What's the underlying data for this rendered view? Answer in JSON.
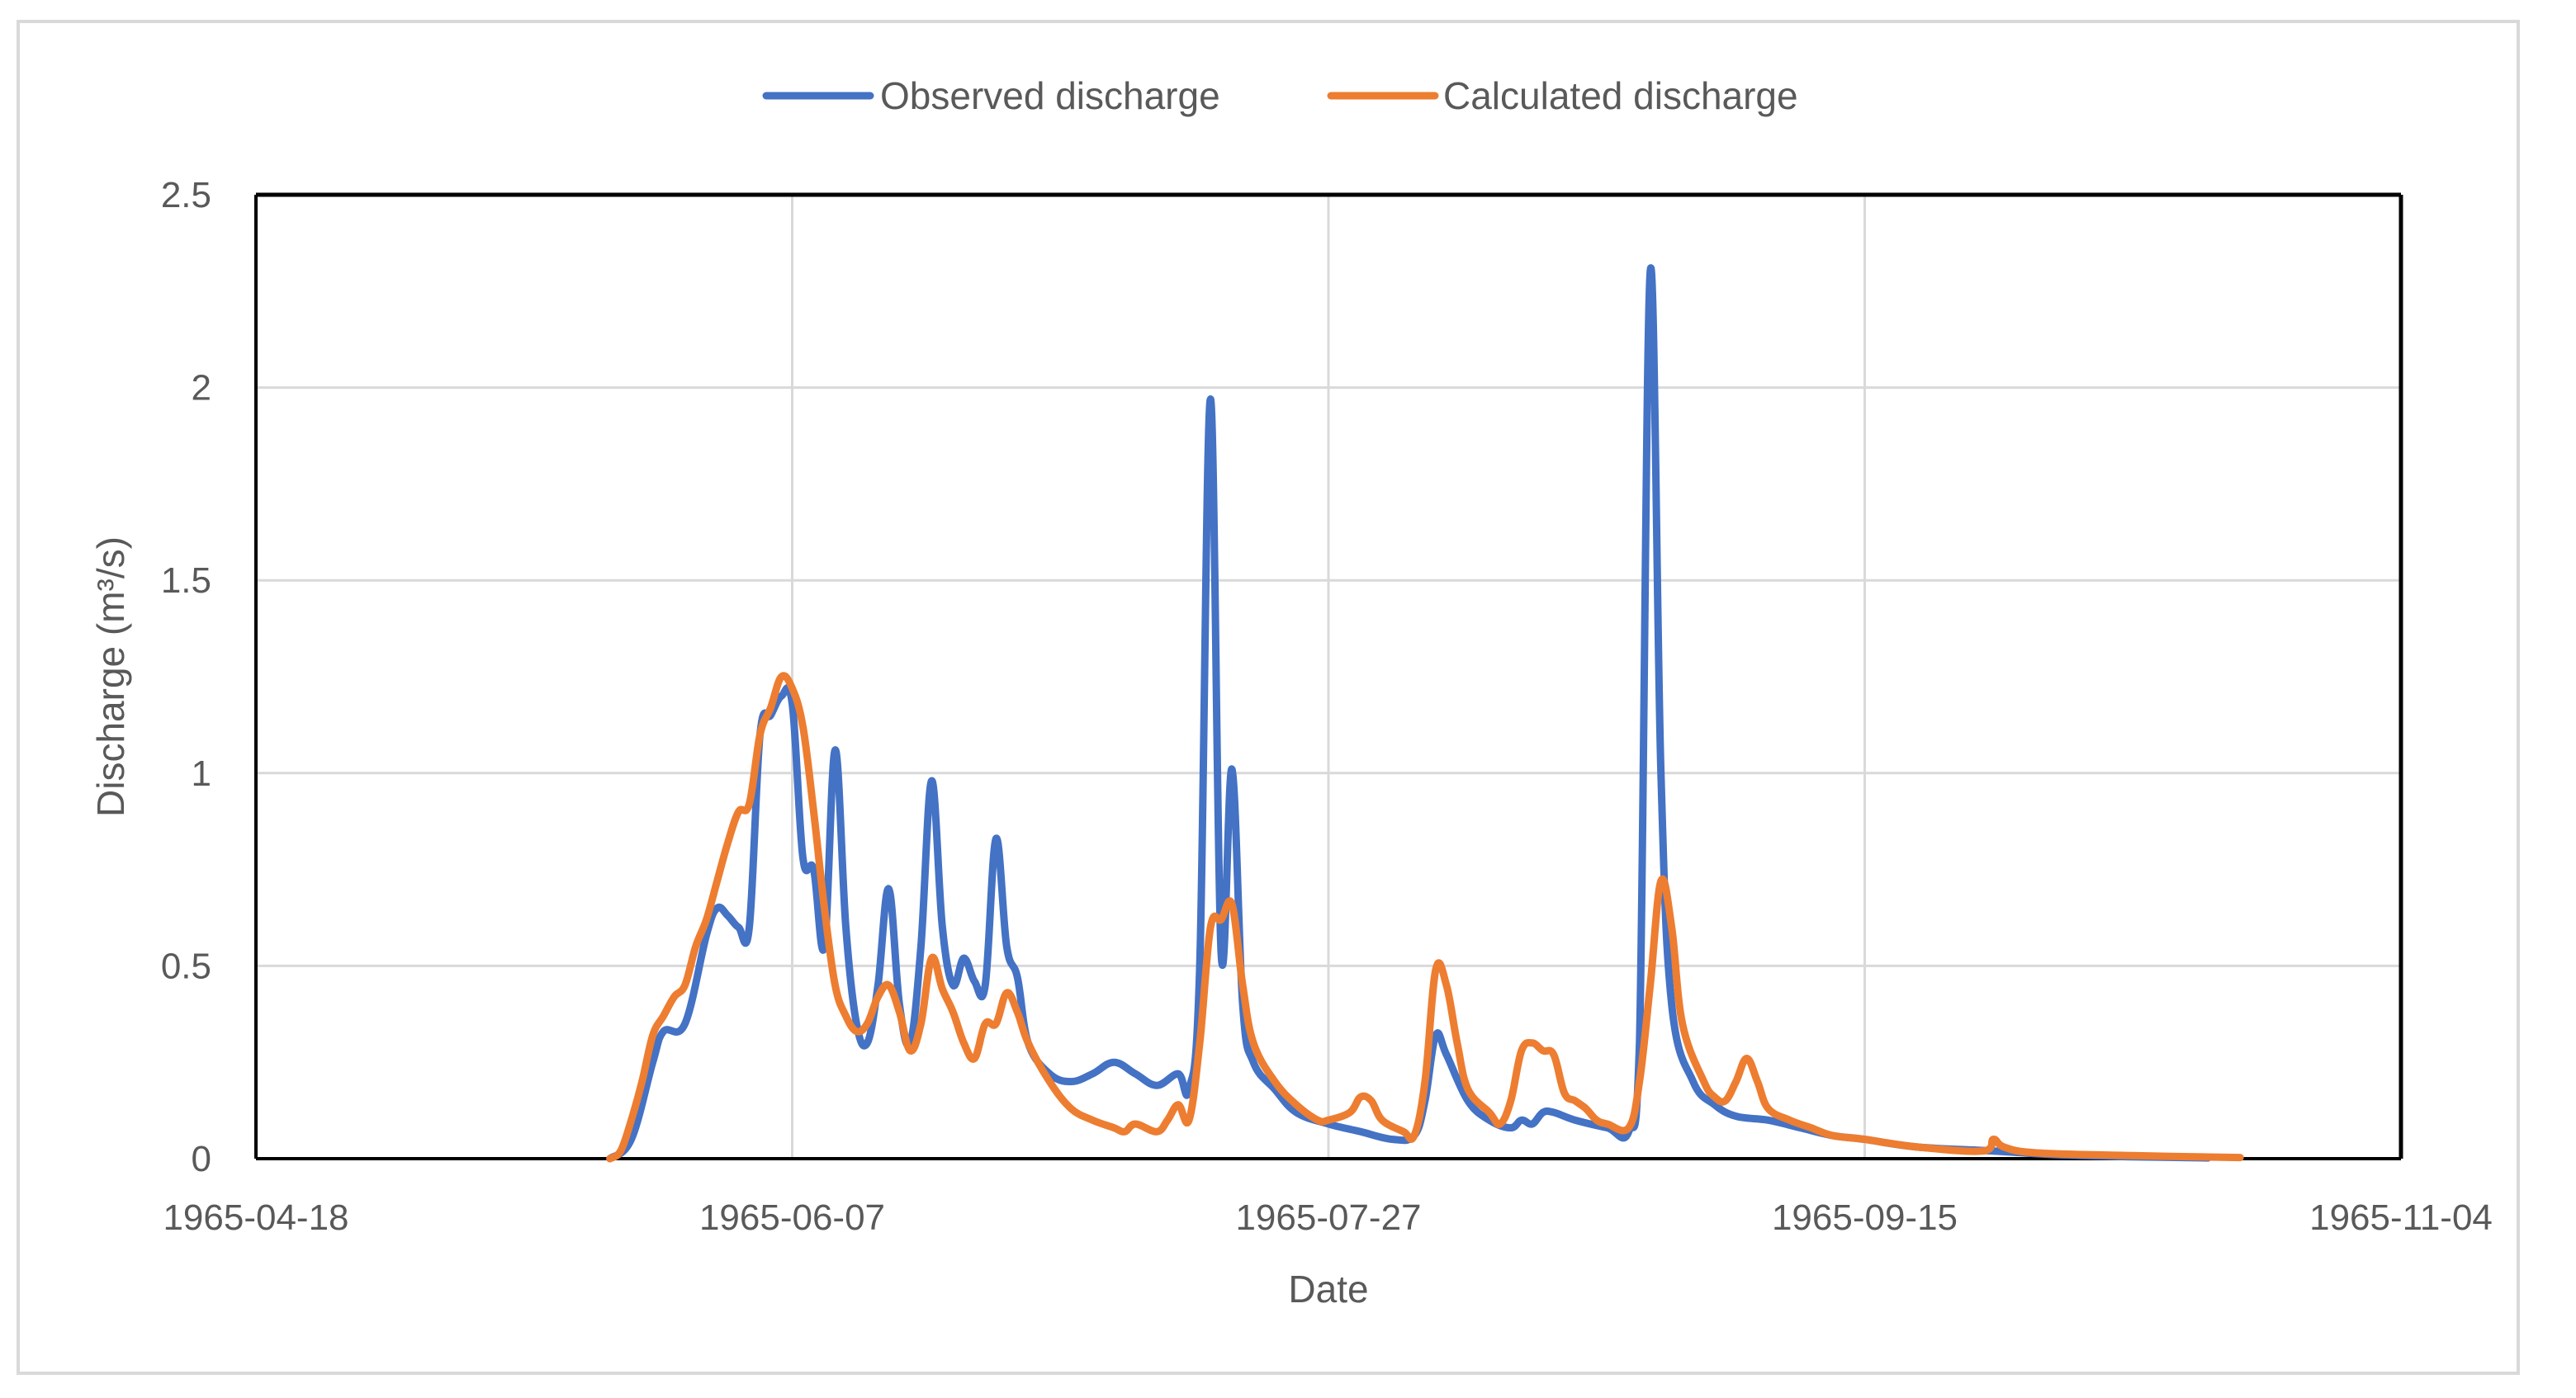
{
  "chart_data": {
    "type": "line",
    "title": "",
    "xlabel": "Date",
    "ylabel": "Discharge (m³/s)",
    "x_axis": {
      "type": "date",
      "min": "1965-04-18",
      "max": "1965-11-04",
      "ticks": [
        "1965-04-18",
        "1965-06-07",
        "1965-07-27",
        "1965-09-15",
        "1965-11-04"
      ]
    },
    "y_axis": {
      "min": 0,
      "max": 2.5,
      "ticks": [
        "0",
        "0.5",
        "1",
        "1.5",
        "2",
        "2.5"
      ]
    },
    "grid": true,
    "legend": {
      "position": "top"
    },
    "series": [
      {
        "name": "Observed discharge",
        "color": "#4472C4",
        "points": [
          [
            "1965-05-21",
            0
          ],
          [
            "1965-05-23",
            0.05
          ],
          [
            "1965-05-25",
            0.25
          ],
          [
            "1965-05-26",
            0.33
          ],
          [
            "1965-05-28",
            0.35
          ],
          [
            "1965-05-30",
            0.58
          ],
          [
            "1965-05-31",
            0.65
          ],
          [
            "1965-06-01",
            0.63
          ],
          [
            "1965-06-02",
            0.6
          ],
          [
            "1965-06-03",
            0.6
          ],
          [
            "1965-06-04",
            1.1
          ],
          [
            "1965-06-05",
            1.15
          ],
          [
            "1965-06-06",
            1.2
          ],
          [
            "1965-06-07",
            1.18
          ],
          [
            "1965-06-08",
            0.78
          ],
          [
            "1965-06-09",
            0.75
          ],
          [
            "1965-06-10",
            0.55
          ],
          [
            "1965-06-11",
            1.06
          ],
          [
            "1965-06-12",
            0.6
          ],
          [
            "1965-06-13",
            0.35
          ],
          [
            "1965-06-14",
            0.3
          ],
          [
            "1965-06-15",
            0.45
          ],
          [
            "1965-06-16",
            0.7
          ],
          [
            "1965-06-17",
            0.4
          ],
          [
            "1965-06-18",
            0.3
          ],
          [
            "1965-06-19",
            0.55
          ],
          [
            "1965-06-20",
            0.98
          ],
          [
            "1965-06-21",
            0.6
          ],
          [
            "1965-06-22",
            0.45
          ],
          [
            "1965-06-23",
            0.52
          ],
          [
            "1965-06-24",
            0.46
          ],
          [
            "1965-06-25",
            0.45
          ],
          [
            "1965-06-26",
            0.83
          ],
          [
            "1965-06-27",
            0.55
          ],
          [
            "1965-06-28",
            0.47
          ],
          [
            "1965-06-29",
            0.3
          ],
          [
            "1965-07-01",
            0.22
          ],
          [
            "1965-07-03",
            0.2
          ],
          [
            "1965-07-05",
            0.22
          ],
          [
            "1965-07-07",
            0.25
          ],
          [
            "1965-07-09",
            0.22
          ],
          [
            "1965-07-11",
            0.19
          ],
          [
            "1965-07-13",
            0.22
          ],
          [
            "1965-07-14",
            0.18
          ],
          [
            "1965-07-15",
            0.5
          ],
          [
            "1965-07-16",
            1.97
          ],
          [
            "1965-07-17",
            0.53
          ],
          [
            "1965-07-18",
            1.01
          ],
          [
            "1965-07-19",
            0.4
          ],
          [
            "1965-07-20",
            0.25
          ],
          [
            "1965-07-22",
            0.18
          ],
          [
            "1965-07-24",
            0.12
          ],
          [
            "1965-07-27",
            0.09
          ],
          [
            "1965-07-30",
            0.07
          ],
          [
            "1965-08-02",
            0.05
          ],
          [
            "1965-08-04",
            0.06
          ],
          [
            "1965-08-05",
            0.15
          ],
          [
            "1965-08-06",
            0.32
          ],
          [
            "1965-08-07",
            0.27
          ],
          [
            "1965-08-09",
            0.15
          ],
          [
            "1965-08-11",
            0.1
          ],
          [
            "1965-08-13",
            0.08
          ],
          [
            "1965-08-14",
            0.1
          ],
          [
            "1965-08-15",
            0.09
          ],
          [
            "1965-08-16",
            0.12
          ],
          [
            "1965-08-17",
            0.12
          ],
          [
            "1965-08-19",
            0.1
          ],
          [
            "1965-08-22",
            0.08
          ],
          [
            "1965-08-24",
            0.07
          ],
          [
            "1965-08-25",
            0.3
          ],
          [
            "1965-08-26",
            2.3
          ],
          [
            "1965-08-27",
            1.0
          ],
          [
            "1965-08-28",
            0.4
          ],
          [
            "1965-08-30",
            0.2
          ],
          [
            "1965-09-01",
            0.14
          ],
          [
            "1965-09-03",
            0.11
          ],
          [
            "1965-09-06",
            0.1
          ],
          [
            "1965-09-09",
            0.08
          ],
          [
            "1965-09-12",
            0.06
          ],
          [
            "1965-09-15",
            0.05
          ],
          [
            "1965-09-20",
            0.03
          ],
          [
            "1965-09-27",
            0.02
          ],
          [
            "1965-10-03",
            0.01
          ],
          [
            "1965-10-10",
            0.005
          ],
          [
            "1965-10-17",
            0.002
          ]
        ]
      },
      {
        "name": "Calculated discharge",
        "color": "#ED7D31",
        "points": [
          [
            "1965-05-21",
            0
          ],
          [
            "1965-05-22",
            0.02
          ],
          [
            "1965-05-23",
            0.1
          ],
          [
            "1965-05-24",
            0.2
          ],
          [
            "1965-05-25",
            0.32
          ],
          [
            "1965-05-26",
            0.37
          ],
          [
            "1965-05-27",
            0.42
          ],
          [
            "1965-05-28",
            0.45
          ],
          [
            "1965-05-29",
            0.55
          ],
          [
            "1965-05-30",
            0.62
          ],
          [
            "1965-05-31",
            0.72
          ],
          [
            "1965-06-01",
            0.82
          ],
          [
            "1965-06-02",
            0.9
          ],
          [
            "1965-06-03",
            0.92
          ],
          [
            "1965-06-04",
            1.1
          ],
          [
            "1965-06-05",
            1.17
          ],
          [
            "1965-06-06",
            1.25
          ],
          [
            "1965-06-07",
            1.22
          ],
          [
            "1965-06-08",
            1.12
          ],
          [
            "1965-06-09",
            0.9
          ],
          [
            "1965-06-10",
            0.65
          ],
          [
            "1965-06-11",
            0.45
          ],
          [
            "1965-06-12",
            0.37
          ],
          [
            "1965-06-13",
            0.33
          ],
          [
            "1965-06-14",
            0.35
          ],
          [
            "1965-06-15",
            0.42
          ],
          [
            "1965-06-16",
            0.45
          ],
          [
            "1965-06-17",
            0.38
          ],
          [
            "1965-06-18",
            0.28
          ],
          [
            "1965-06-19",
            0.35
          ],
          [
            "1965-06-20",
            0.52
          ],
          [
            "1965-06-21",
            0.44
          ],
          [
            "1965-06-22",
            0.38
          ],
          [
            "1965-06-23",
            0.3
          ],
          [
            "1965-06-24",
            0.26
          ],
          [
            "1965-06-25",
            0.35
          ],
          [
            "1965-06-26",
            0.35
          ],
          [
            "1965-06-27",
            0.43
          ],
          [
            "1965-06-28",
            0.38
          ],
          [
            "1965-06-29",
            0.3
          ],
          [
            "1965-07-01",
            0.2
          ],
          [
            "1965-07-03",
            0.13
          ],
          [
            "1965-07-05",
            0.1
          ],
          [
            "1965-07-07",
            0.08
          ],
          [
            "1965-07-08",
            0.07
          ],
          [
            "1965-07-09",
            0.09
          ],
          [
            "1965-07-11",
            0.07
          ],
          [
            "1965-07-12",
            0.1
          ],
          [
            "1965-07-13",
            0.14
          ],
          [
            "1965-07-14",
            0.1
          ],
          [
            "1965-07-15",
            0.3
          ],
          [
            "1965-07-16",
            0.6
          ],
          [
            "1965-07-17",
            0.62
          ],
          [
            "1965-07-18",
            0.66
          ],
          [
            "1965-07-19",
            0.45
          ],
          [
            "1965-07-20",
            0.3
          ],
          [
            "1965-07-22",
            0.2
          ],
          [
            "1965-07-24",
            0.14
          ],
          [
            "1965-07-26",
            0.1
          ],
          [
            "1965-07-27",
            0.1
          ],
          [
            "1965-07-29",
            0.12
          ],
          [
            "1965-07-30",
            0.16
          ],
          [
            "1965-07-31",
            0.15
          ],
          [
            "1965-08-01",
            0.1
          ],
          [
            "1965-08-03",
            0.07
          ],
          [
            "1965-08-04",
            0.06
          ],
          [
            "1965-08-05",
            0.2
          ],
          [
            "1965-08-06",
            0.49
          ],
          [
            "1965-08-07",
            0.45
          ],
          [
            "1965-08-08",
            0.3
          ],
          [
            "1965-08-09",
            0.18
          ],
          [
            "1965-08-11",
            0.12
          ],
          [
            "1965-08-12",
            0.09
          ],
          [
            "1965-08-13",
            0.15
          ],
          [
            "1965-08-14",
            0.28
          ],
          [
            "1965-08-15",
            0.3
          ],
          [
            "1965-08-16",
            0.28
          ],
          [
            "1965-08-17",
            0.27
          ],
          [
            "1965-08-18",
            0.17
          ],
          [
            "1965-08-19",
            0.15
          ],
          [
            "1965-08-20",
            0.13
          ],
          [
            "1965-08-21",
            0.1
          ],
          [
            "1965-08-22",
            0.09
          ],
          [
            "1965-08-24",
            0.08
          ],
          [
            "1965-08-25",
            0.2
          ],
          [
            "1965-08-26",
            0.45
          ],
          [
            "1965-08-27",
            0.72
          ],
          [
            "1965-08-28",
            0.6
          ],
          [
            "1965-08-29",
            0.35
          ],
          [
            "1965-08-31",
            0.2
          ],
          [
            "1965-09-01",
            0.16
          ],
          [
            "1965-09-02",
            0.15
          ],
          [
            "1965-09-03",
            0.2
          ],
          [
            "1965-09-04",
            0.26
          ],
          [
            "1965-09-05",
            0.2
          ],
          [
            "1965-09-06",
            0.13
          ],
          [
            "1965-09-08",
            0.1
          ],
          [
            "1965-09-10",
            0.08
          ],
          [
            "1965-09-12",
            0.06
          ],
          [
            "1965-09-15",
            0.05
          ],
          [
            "1965-09-20",
            0.03
          ],
          [
            "1965-09-26",
            0.02
          ],
          [
            "1965-09-27",
            0.05
          ],
          [
            "1965-09-28",
            0.03
          ],
          [
            "1965-10-01",
            0.015
          ],
          [
            "1965-10-10",
            0.008
          ],
          [
            "1965-10-20",
            0.003
          ]
        ]
      }
    ]
  }
}
